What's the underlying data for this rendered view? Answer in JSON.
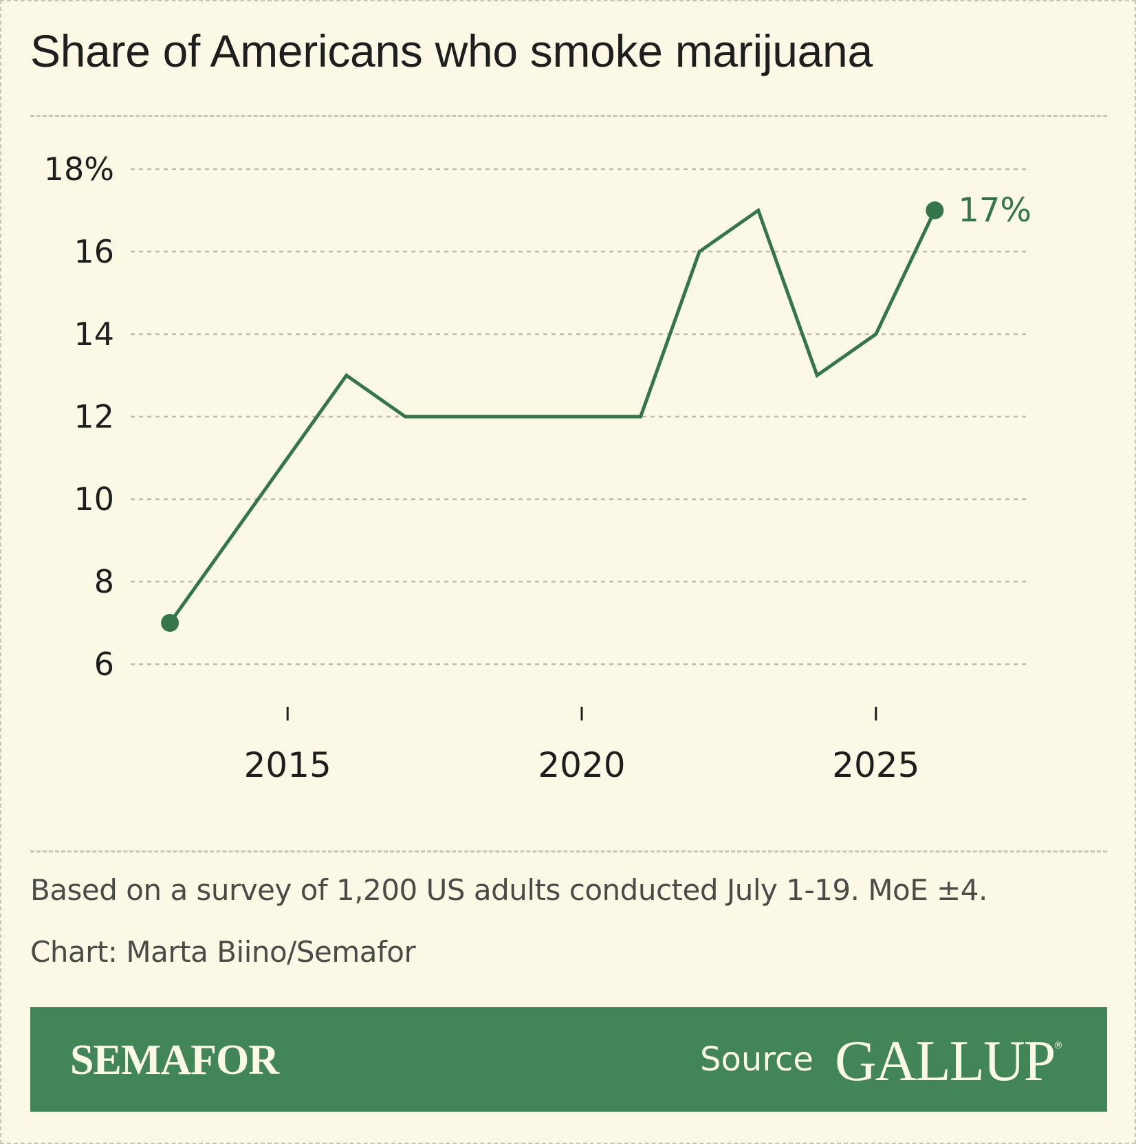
{
  "header": {
    "title": "Share of Americans who smoke marijuana"
  },
  "chart_data": {
    "type": "line",
    "title": "Share of Americans who smoke marijuana",
    "xlabel": "",
    "ylabel": "",
    "x": [
      2013,
      2015,
      2016,
      2017,
      2018,
      2019,
      2020,
      2021,
      2022,
      2023,
      2024,
      2025,
      2026
    ],
    "series": [
      {
        "values": [
          7,
          11,
          13,
          12,
          12,
          12,
          12,
          12,
          16,
          17,
          13,
          14,
          17
        ]
      }
    ],
    "xlim": [
      2012.8,
      2027.2
    ],
    "ylim": [
      6,
      18
    ],
    "yticks": [
      6,
      8,
      10,
      12,
      14,
      16,
      18
    ],
    "ytick_labels": [
      "6",
      "8",
      "10",
      "12",
      "14",
      "16",
      "18%"
    ],
    "xticks": [
      2015,
      2020,
      2025
    ],
    "xtick_labels": [
      "2015",
      "2020",
      "2025"
    ],
    "end_label": "17%",
    "grid": true,
    "color": "#35754a"
  },
  "footer": {
    "note": "Based on a survey of 1,200 US adults conducted July 1-19. MoE ±4.",
    "credit": "Chart: Marta Biino/Semafor"
  },
  "branding": {
    "publisher": "SEMAFOR",
    "source_label": "Source",
    "source_name": "GALLUP",
    "band_color": "#428556"
  }
}
